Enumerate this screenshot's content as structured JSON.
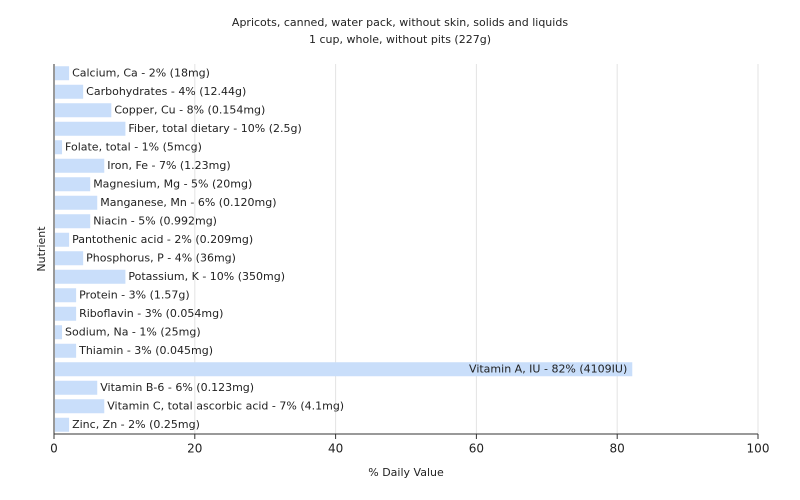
{
  "chart_data": {
    "type": "barh",
    "title": "Apricots, canned, water pack, without skin, solids and liquids",
    "subtitle": "1 cup, whole, without pits (227g)",
    "xlabel": "% Daily Value",
    "ylabel": "Nutrient",
    "categories": [
      "Calcium, Ca - 2% (18mg)",
      "Carbohydrates - 4% (12.44g)",
      "Copper, Cu - 8% (0.154mg)",
      "Fiber, total dietary - 10% (2.5g)",
      "Folate, total - 1% (5mcg)",
      "Iron, Fe - 7% (1.23mg)",
      "Magnesium, Mg - 5% (20mg)",
      "Manganese, Mn - 6% (0.120mg)",
      "Niacin - 5% (0.992mg)",
      "Pantothenic acid - 2% (0.209mg)",
      "Phosphorus, P - 4% (36mg)",
      "Potassium, K - 10% (350mg)",
      "Protein - 3% (1.57g)",
      "Riboflavin - 3% (0.054mg)",
      "Sodium, Na - 1% (25mg)",
      "Thiamin - 3% (0.045mg)",
      "Vitamin A, IU - 82% (4109IU)",
      "Vitamin B-6 - 6% (0.123mg)",
      "Vitamin C, total ascorbic acid - 7% (4.1mg)",
      "Zinc, Zn - 2% (0.25mg)"
    ],
    "values": [
      2,
      4,
      8,
      10,
      1,
      7,
      5,
      6,
      5,
      2,
      4,
      10,
      3,
      3,
      1,
      3,
      82,
      6,
      7,
      2
    ],
    "color": "#c9defa",
    "xlim": [
      0,
      100
    ],
    "xticks": [
      0,
      20,
      40,
      60,
      80,
      100
    ],
    "grid": true
  }
}
